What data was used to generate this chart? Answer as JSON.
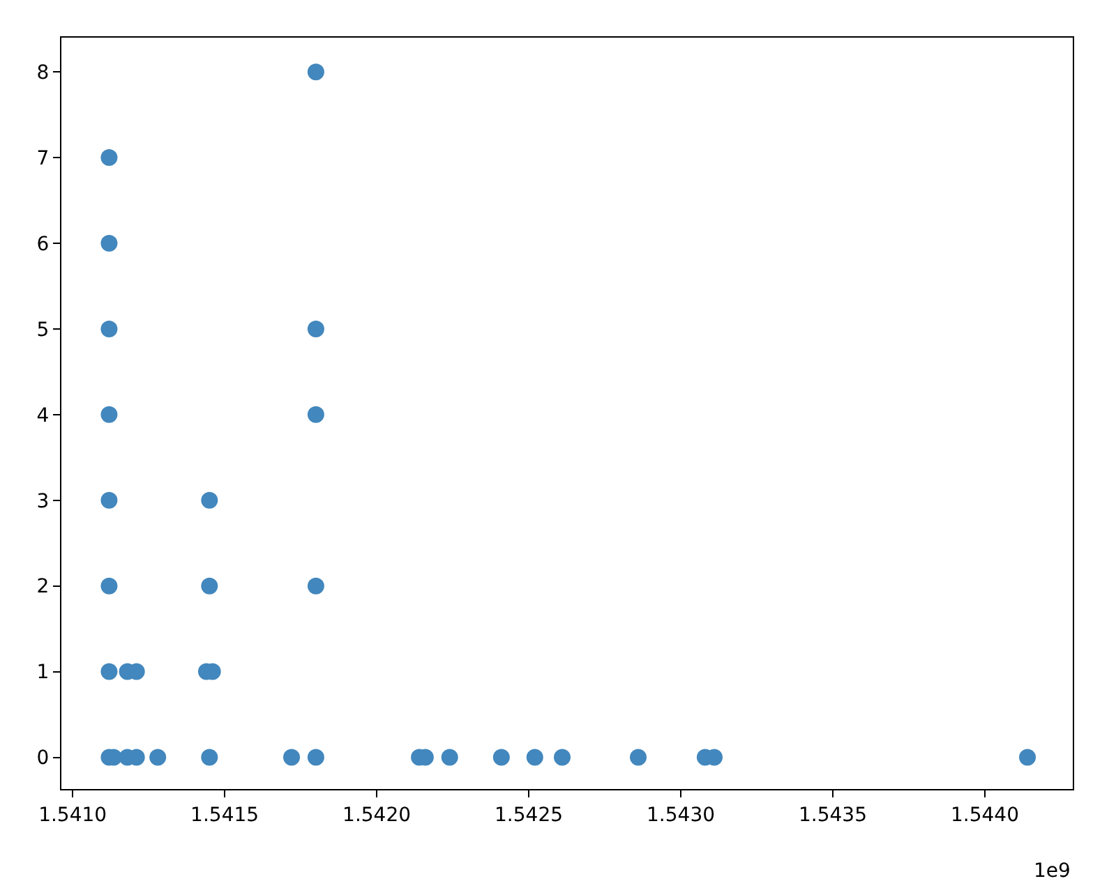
{
  "chart_data": {
    "type": "scatter",
    "x": [
      1.54112,
      1.54112,
      1.54112,
      1.54112,
      1.54112,
      1.54112,
      1.54112,
      1.54112,
      1.541135,
      1.54118,
      1.54121,
      1.54128,
      1.54118,
      1.54121,
      1.54145,
      1.54145,
      1.54145,
      1.54144,
      1.54146,
      1.54172,
      1.5418,
      1.5418,
      1.5418,
      1.5418,
      1.5418,
      1.54214,
      1.54216,
      1.54224,
      1.54241,
      1.54252,
      1.54261,
      1.54286,
      1.54308,
      1.54311,
      1.54414
    ],
    "values": [
      0,
      1,
      2,
      3,
      4,
      5,
      6,
      7,
      0,
      0,
      0,
      0,
      1,
      1,
      0,
      2,
      3,
      1,
      1,
      0,
      0,
      2,
      4,
      5,
      8,
      0,
      0,
      0,
      0,
      0,
      0,
      0,
      0,
      0,
      0
    ],
    "color": "#4287bd",
    "marker": "circle",
    "xlim": [
      1.540963,
      1.544289
    ],
    "xticks": [
      {
        "value": 1.541,
        "label": "1.5410"
      },
      {
        "value": 1.5415,
        "label": "1.5415"
      },
      {
        "value": 1.542,
        "label": "1.5420"
      },
      {
        "value": 1.5425,
        "label": "1.5425"
      },
      {
        "value": 1.543,
        "label": "1.5430"
      },
      {
        "value": 1.5435,
        "label": "1.5435"
      },
      {
        "value": 1.544,
        "label": "1.5440"
      }
    ],
    "ylim": [
      -0.37,
      8.4
    ],
    "yticks": [
      0,
      1,
      2,
      3,
      4,
      5,
      6,
      7,
      8
    ],
    "annotations": [
      "1e9"
    ]
  }
}
